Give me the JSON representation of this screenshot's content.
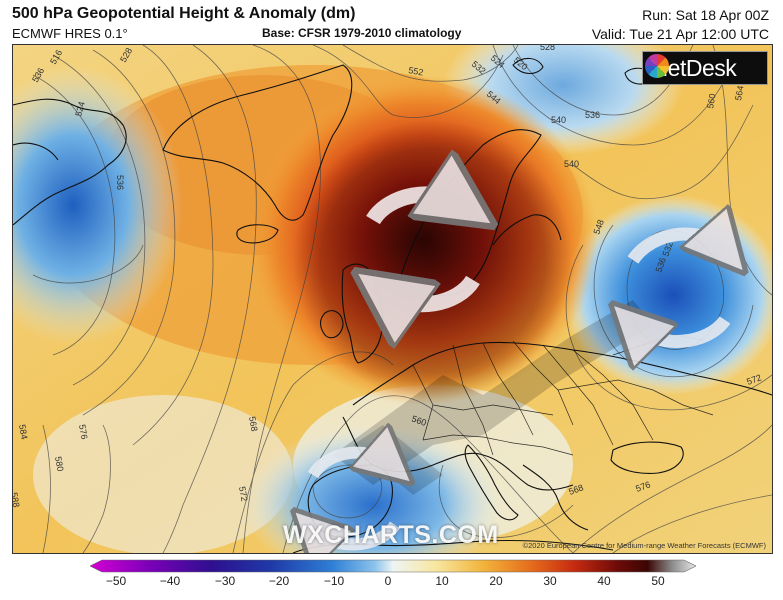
{
  "header": {
    "title": "500 hPa Geopotential Height & Anomaly (dm)",
    "model": "ECMWF HRES 0.1°",
    "base": "Base: CFSR 1979-2010 climatology",
    "run": "Run: Sat 18 Apr 00Z",
    "valid": "Valid: Tue 21 Apr 12:00 UTC"
  },
  "branding": {
    "logo": "MetDesk",
    "watermark": "WXCHARTS.COM",
    "copyright": "©2020 European Centre for Medium-range Weather Forecasts (ECMWF)"
  },
  "contour_labels": [
    "536",
    "524",
    "516",
    "528",
    "536",
    "552",
    "532",
    "524",
    "520",
    "528",
    "536",
    "540",
    "560",
    "564",
    "548",
    "544",
    "536",
    "532",
    "584",
    "576",
    "580",
    "588",
    "568",
    "572",
    "560",
    "568",
    "576",
    "572",
    "540"
  ],
  "colorbar": {
    "ticks": [
      "−50",
      "−40",
      "−30",
      "−20",
      "−10",
      "0",
      "10",
      "20",
      "30",
      "40",
      "50"
    ],
    "colors": [
      "#d400d4",
      "#7a00b8",
      "#2e0f8f",
      "#1f3aa8",
      "#2f7fd6",
      "#8cc3ec",
      "#eef4f4",
      "#f8e7a0",
      "#f2b33a",
      "#e56a1c",
      "#c52a10",
      "#6e0b08",
      "#3a0604",
      "#8a8a8a",
      "#e8e8e8"
    ]
  },
  "annotations": {
    "high_center": "anticyclonic circulation over Scandinavia",
    "low_centers": [
      "cyclonic circulation over western Russia",
      "cyclonic circulation over Iberia"
    ]
  }
}
